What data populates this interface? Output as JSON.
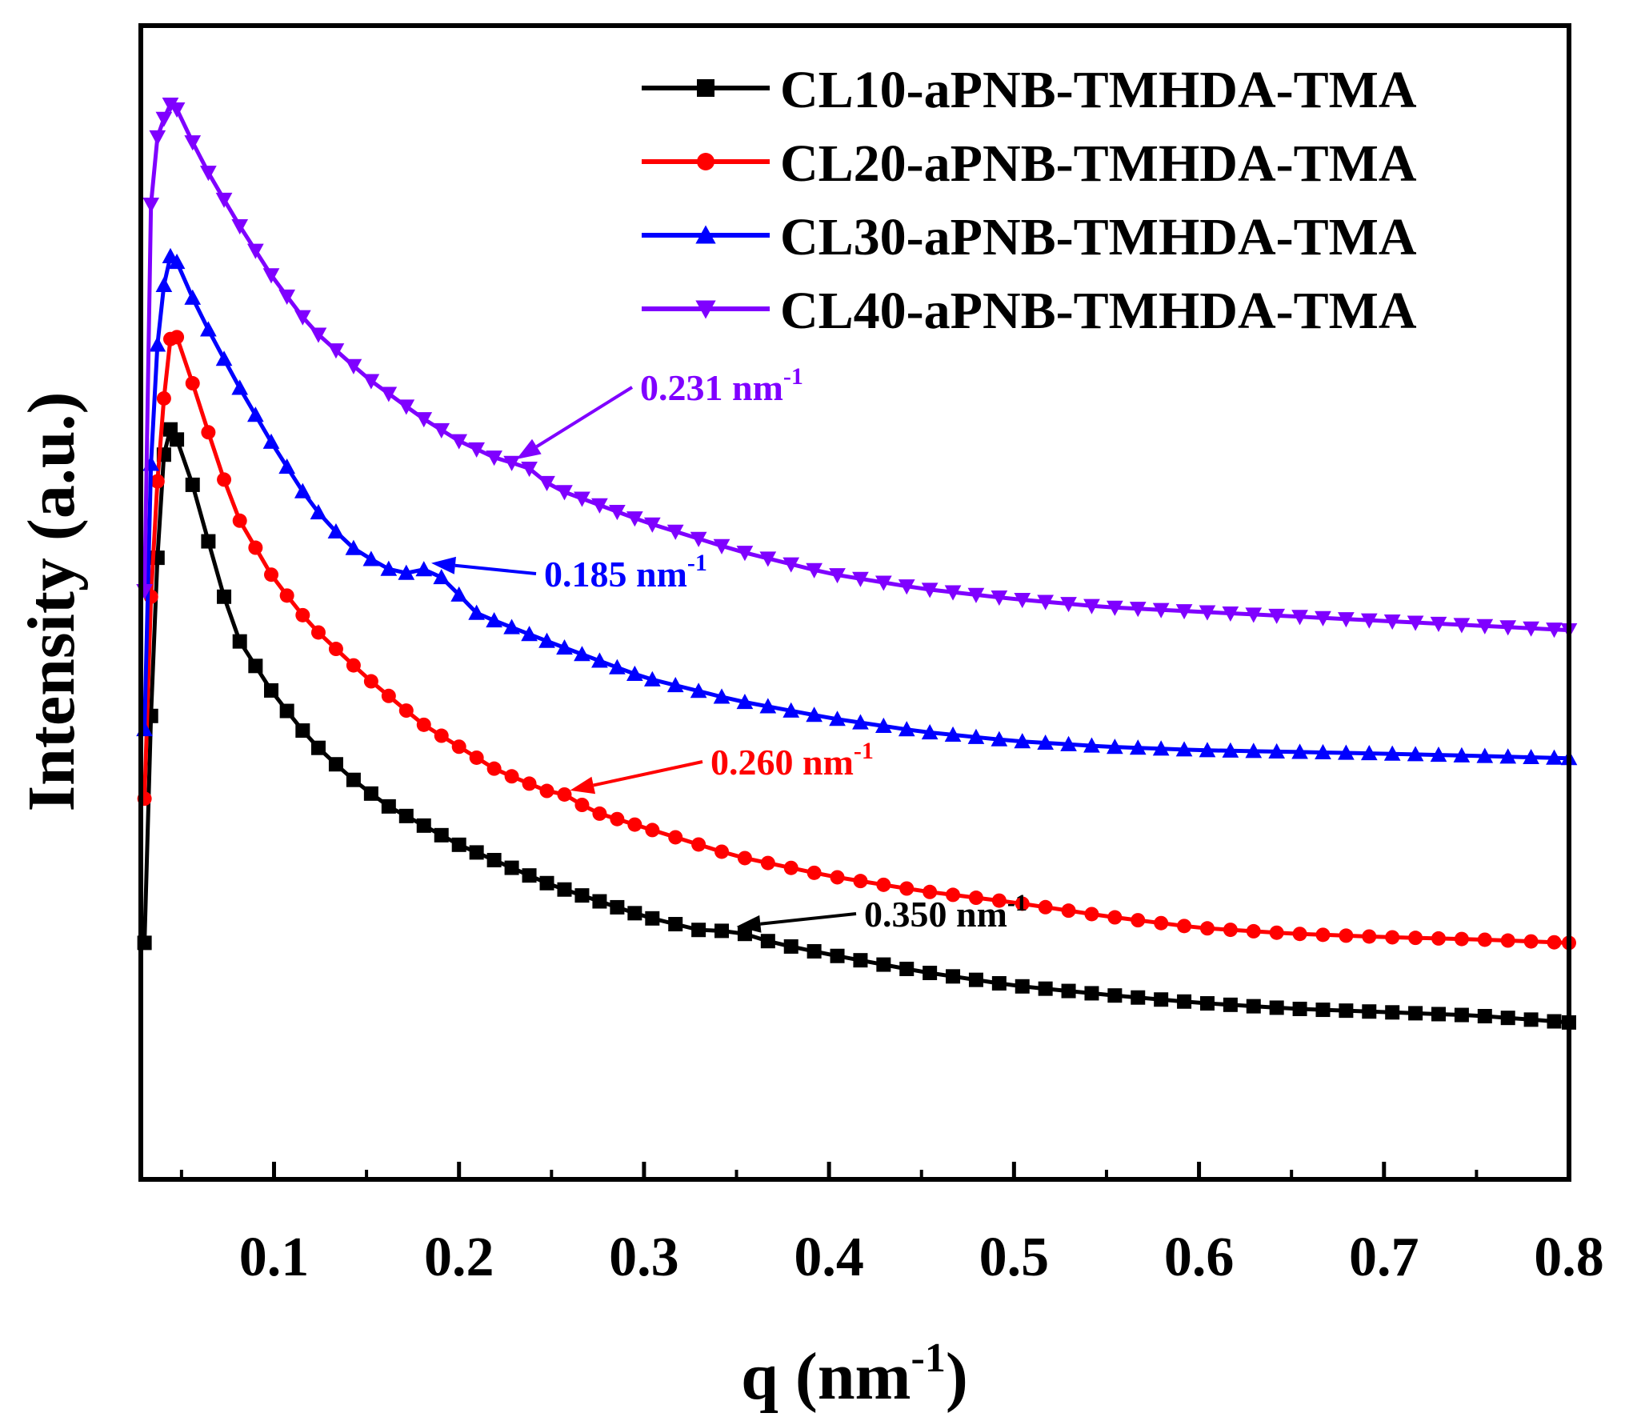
{
  "chart_data": {
    "type": "scatter",
    "title": "",
    "xlabel": {
      "base": "q (nm",
      "sup": "-1",
      "close": ")"
    },
    "ylabel": "Intensity (a.u.)",
    "xlim": [
      0.028,
      0.8
    ],
    "ylim": [
      0,
      100
    ],
    "y_ticks_shown": false,
    "x_ticks": [
      0.1,
      0.2,
      0.3,
      0.4,
      0.5,
      0.6,
      0.7,
      0.8
    ],
    "x_tick_labels": [
      "0.1",
      "0.2",
      "0.3",
      "0.4",
      "0.5",
      "0.6",
      "0.7",
      "0.8"
    ],
    "legend_position": "top-right",
    "series": [
      {
        "name": "CL10-aPNB-TMHDA-TMA",
        "color": "#000000",
        "marker": "square",
        "anchors": [
          [
            0.03,
            20.5
          ],
          [
            0.033,
            38
          ],
          [
            0.036,
            51
          ],
          [
            0.04,
            62.5
          ],
          [
            0.044,
            65
          ],
          [
            0.05,
            63.5
          ],
          [
            0.06,
            58
          ],
          [
            0.07,
            52
          ],
          [
            0.08,
            47
          ],
          [
            0.1,
            42
          ],
          [
            0.12,
            38
          ],
          [
            0.14,
            35
          ],
          [
            0.16,
            32.5
          ],
          [
            0.2,
            29
          ],
          [
            0.25,
            25.5
          ],
          [
            0.3,
            22.8
          ],
          [
            0.33,
            21.6
          ],
          [
            0.35,
            21.5
          ],
          [
            0.37,
            20.5
          ],
          [
            0.4,
            19.5
          ],
          [
            0.45,
            18
          ],
          [
            0.5,
            16.8
          ],
          [
            0.55,
            16
          ],
          [
            0.6,
            15.3
          ],
          [
            0.65,
            14.8
          ],
          [
            0.7,
            14.5
          ],
          [
            0.75,
            14.2
          ],
          [
            0.8,
            13.6
          ]
        ]
      },
      {
        "name": "CL20-aPNB-TMHDA-TMA",
        "color": "#ff0000",
        "marker": "circle",
        "anchors": [
          [
            0.03,
            33
          ],
          [
            0.034,
            53
          ],
          [
            0.038,
            63
          ],
          [
            0.042,
            70.5
          ],
          [
            0.045,
            74
          ],
          [
            0.05,
            72
          ],
          [
            0.06,
            67
          ],
          [
            0.07,
            62
          ],
          [
            0.08,
            57.5
          ],
          [
            0.1,
            52
          ],
          [
            0.12,
            48
          ],
          [
            0.15,
            43.5
          ],
          [
            0.18,
            39.5
          ],
          [
            0.2,
            37.5
          ],
          [
            0.22,
            35.5
          ],
          [
            0.25,
            33.5
          ],
          [
            0.26,
            33.3
          ],
          [
            0.27,
            32
          ],
          [
            0.3,
            30.5
          ],
          [
            0.35,
            28
          ],
          [
            0.4,
            26.3
          ],
          [
            0.45,
            25
          ],
          [
            0.5,
            24
          ],
          [
            0.55,
            22.8
          ],
          [
            0.6,
            21.8
          ],
          [
            0.65,
            21.3
          ],
          [
            0.7,
            21
          ],
          [
            0.75,
            20.8
          ],
          [
            0.8,
            20.5
          ]
        ]
      },
      {
        "name": "CL30-aPNB-TMHDA-TMA",
        "color": "#0000ff",
        "marker": "triangle-up",
        "anchors": [
          [
            0.03,
            39
          ],
          [
            0.032,
            57
          ],
          [
            0.035,
            67
          ],
          [
            0.038,
            75
          ],
          [
            0.042,
            79
          ],
          [
            0.045,
            80.5
          ],
          [
            0.05,
            78.5
          ],
          [
            0.06,
            75
          ],
          [
            0.08,
            69
          ],
          [
            0.1,
            63.5
          ],
          [
            0.12,
            58.5
          ],
          [
            0.14,
            55
          ],
          [
            0.16,
            53
          ],
          [
            0.17,
            52.5
          ],
          [
            0.185,
            53
          ],
          [
            0.195,
            51.5
          ],
          [
            0.21,
            49
          ],
          [
            0.25,
            46.5
          ],
          [
            0.3,
            43.5
          ],
          [
            0.35,
            41.5
          ],
          [
            0.4,
            40
          ],
          [
            0.45,
            38.8
          ],
          [
            0.5,
            38
          ],
          [
            0.55,
            37.5
          ],
          [
            0.6,
            37.2
          ],
          [
            0.7,
            36.9
          ],
          [
            0.8,
            36.5
          ]
        ]
      },
      {
        "name": "CL40-aPNB-TMHDA-TMA",
        "color": "#7f00ff",
        "marker": "triangle-down",
        "anchors": [
          [
            0.03,
            51
          ],
          [
            0.032,
            80
          ],
          [
            0.035,
            89
          ],
          [
            0.038,
            91
          ],
          [
            0.042,
            92.5
          ],
          [
            0.045,
            93.5
          ],
          [
            0.05,
            92
          ],
          [
            0.06,
            88.5
          ],
          [
            0.08,
            83
          ],
          [
            0.1,
            78
          ],
          [
            0.12,
            73.8
          ],
          [
            0.15,
            69.5
          ],
          [
            0.18,
            66
          ],
          [
            0.2,
            64
          ],
          [
            0.22,
            62.5
          ],
          [
            0.231,
            62
          ],
          [
            0.24,
            61.5
          ],
          [
            0.25,
            60
          ],
          [
            0.3,
            57
          ],
          [
            0.35,
            54.5
          ],
          [
            0.4,
            52.5
          ],
          [
            0.45,
            51.2
          ],
          [
            0.5,
            50.3
          ],
          [
            0.55,
            49.6
          ],
          [
            0.6,
            49.2
          ],
          [
            0.65,
            48.8
          ],
          [
            0.7,
            48.4
          ],
          [
            0.75,
            48
          ],
          [
            0.8,
            47.6
          ]
        ]
      }
    ],
    "annotations": [
      {
        "series": 0,
        "text": "0.350 nm",
        "sup": "-1",
        "color": "#000000",
        "q": 0.35
      },
      {
        "series": 1,
        "text": "0.260 nm",
        "sup": "-1",
        "color": "#ff0000",
        "q": 0.26
      },
      {
        "series": 2,
        "text": "0.185 nm",
        "sup": "-1",
        "color": "#0000ff",
        "q": 0.185
      },
      {
        "series": 3,
        "text": "0.231 nm",
        "sup": "-1",
        "color": "#7f00ff",
        "q": 0.231
      }
    ]
  }
}
